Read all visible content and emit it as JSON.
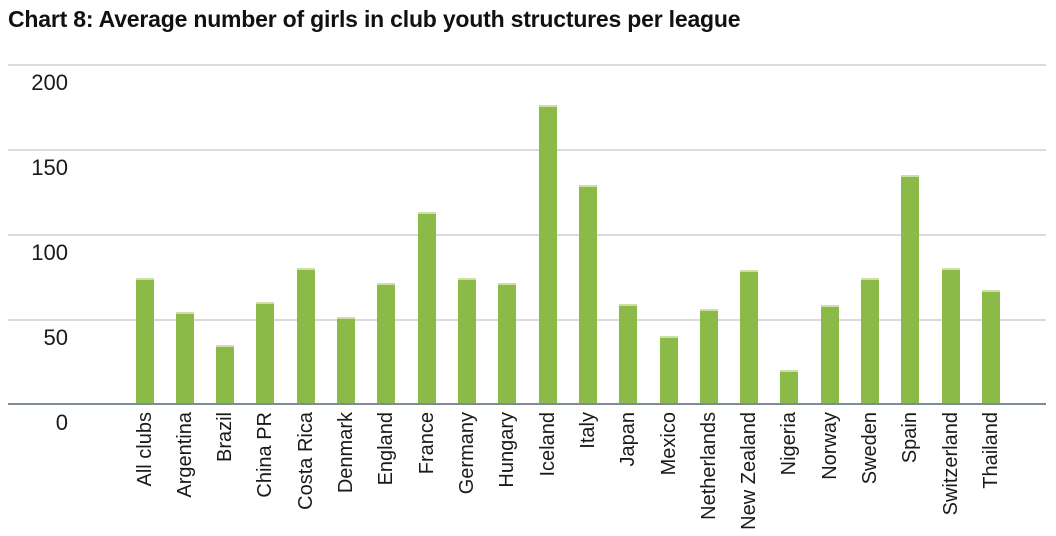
{
  "header": {
    "title": "Chart 8: Average number of girls in club youth structures per league"
  },
  "chart_data": {
    "type": "bar",
    "title": "Chart 8: Average number of girls in club youth structures per league",
    "categories": [
      "All clubs",
      "Argentina",
      "Brazil",
      "China PR",
      "Costa Rica",
      "Denmark",
      "England",
      "France",
      "Germany",
      "Hungary",
      "Iceland",
      "Italy",
      "Japan",
      "Mexico",
      "Netherlands",
      "New Zealand",
      "Nigeria",
      "Norway",
      "Sweden",
      "Spain",
      "Switzerland",
      "Thailand"
    ],
    "values": [
      74,
      54,
      35,
      60,
      80,
      51,
      71,
      113,
      74,
      71,
      176,
      129,
      59,
      40,
      56,
      79,
      20,
      58,
      74,
      135,
      80,
      67
    ],
    "xlabel": "",
    "ylabel": "",
    "ylim": [
      0,
      200
    ],
    "yticks": [
      0,
      50,
      100,
      150,
      200
    ],
    "grid": "horizontal",
    "legend": "none",
    "colors": {
      "bar_fill": "#8cba49",
      "bar_top_highlight": "#cbdfa6",
      "gridline": "#d8dce0",
      "axis_line": "#7e8a95",
      "tick_text": "#1a1a1a",
      "title_text": "#111111",
      "background": "#ffffff"
    }
  }
}
